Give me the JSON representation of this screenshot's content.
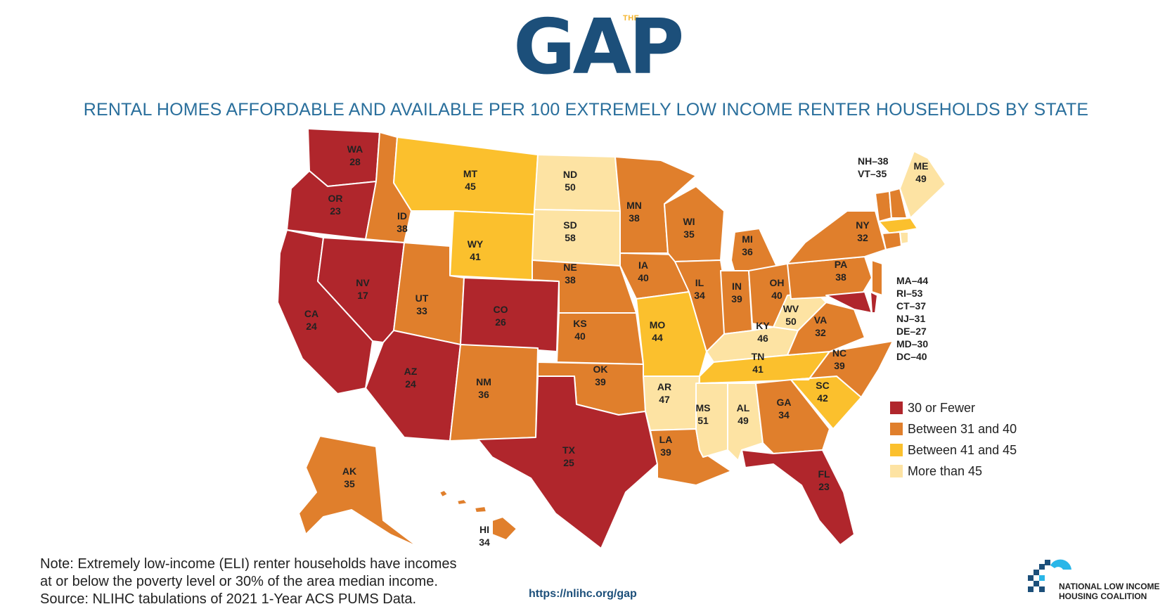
{
  "header": {
    "logo_small": "THE",
    "logo": "GAP",
    "title": "RENTAL HOMES AFFORDABLE AND AVAILABLE PER 100 EXTREMELY LOW INCOME RENTER HOUSEHOLDS BY STATE"
  },
  "colors": {
    "fewer_30": "#b0262c",
    "between_31_40": "#e07f2c",
    "between_41_45": "#fbc02d",
    "more_45": "#fde3a3",
    "border": "#ffffff"
  },
  "states": [
    {
      "code": "WA",
      "value": "28",
      "cat": "fewer_30"
    },
    {
      "code": "OR",
      "value": "23",
      "cat": "fewer_30"
    },
    {
      "code": "CA",
      "value": "24",
      "cat": "fewer_30"
    },
    {
      "code": "ID",
      "value": "38",
      "cat": "between_31_40"
    },
    {
      "code": "NV",
      "value": "17",
      "cat": "fewer_30"
    },
    {
      "code": "MT",
      "value": "45",
      "cat": "between_41_45"
    },
    {
      "code": "WY",
      "value": "41",
      "cat": "between_41_45"
    },
    {
      "code": "UT",
      "value": "33",
      "cat": "between_31_40"
    },
    {
      "code": "AZ",
      "value": "24",
      "cat": "fewer_30"
    },
    {
      "code": "CO",
      "value": "26",
      "cat": "fewer_30"
    },
    {
      "code": "NM",
      "value": "36",
      "cat": "between_31_40"
    },
    {
      "code": "ND",
      "value": "50",
      "cat": "more_45"
    },
    {
      "code": "SD",
      "value": "58",
      "cat": "more_45"
    },
    {
      "code": "NE",
      "value": "38",
      "cat": "between_31_40"
    },
    {
      "code": "KS",
      "value": "40",
      "cat": "between_31_40"
    },
    {
      "code": "OK",
      "value": "39",
      "cat": "between_31_40"
    },
    {
      "code": "TX",
      "value": "25",
      "cat": "fewer_30"
    },
    {
      "code": "MN",
      "value": "38",
      "cat": "between_31_40"
    },
    {
      "code": "IA",
      "value": "40",
      "cat": "between_31_40"
    },
    {
      "code": "MO",
      "value": "44",
      "cat": "between_41_45"
    },
    {
      "code": "AR",
      "value": "47",
      "cat": "more_45"
    },
    {
      "code": "LA",
      "value": "39",
      "cat": "between_31_40"
    },
    {
      "code": "WI",
      "value": "35",
      "cat": "between_31_40"
    },
    {
      "code": "IL",
      "value": "34",
      "cat": "between_31_40"
    },
    {
      "code": "MI",
      "value": "36",
      "cat": "between_31_40"
    },
    {
      "code": "IN",
      "value": "39",
      "cat": "between_31_40"
    },
    {
      "code": "OH",
      "value": "40",
      "cat": "between_31_40"
    },
    {
      "code": "KY",
      "value": "46",
      "cat": "more_45"
    },
    {
      "code": "TN",
      "value": "41",
      "cat": "between_41_45"
    },
    {
      "code": "MS",
      "value": "51",
      "cat": "more_45"
    },
    {
      "code": "AL",
      "value": "49",
      "cat": "more_45"
    },
    {
      "code": "GA",
      "value": "34",
      "cat": "between_31_40"
    },
    {
      "code": "FL",
      "value": "23",
      "cat": "fewer_30"
    },
    {
      "code": "SC",
      "value": "42",
      "cat": "between_41_45"
    },
    {
      "code": "NC",
      "value": "39",
      "cat": "between_31_40"
    },
    {
      "code": "VA",
      "value": "32",
      "cat": "between_31_40"
    },
    {
      "code": "WV",
      "value": "50",
      "cat": "more_45"
    },
    {
      "code": "PA",
      "value": "38",
      "cat": "between_31_40"
    },
    {
      "code": "NY",
      "value": "32",
      "cat": "between_31_40"
    },
    {
      "code": "ME",
      "value": "49",
      "cat": "more_45"
    },
    {
      "code": "AK",
      "value": "35",
      "cat": "between_31_40"
    },
    {
      "code": "HI",
      "value": "34",
      "cat": "between_31_40"
    },
    {
      "code": "NH",
      "value": "38",
      "cat": "between_31_40"
    },
    {
      "code": "VT",
      "value": "35",
      "cat": "between_31_40"
    },
    {
      "code": "MA",
      "value": "44",
      "cat": "between_41_45"
    },
    {
      "code": "RI",
      "value": "53",
      "cat": "more_45"
    },
    {
      "code": "CT",
      "value": "37",
      "cat": "between_31_40"
    },
    {
      "code": "NJ",
      "value": "31",
      "cat": "between_31_40"
    },
    {
      "code": "DE",
      "value": "27",
      "cat": "fewer_30"
    },
    {
      "code": "MD",
      "value": "30",
      "cat": "fewer_30"
    },
    {
      "code": "DC",
      "value": "40",
      "cat": "between_31_40"
    }
  ],
  "small_states_ne": [
    "NH–38",
    "VT–35"
  ],
  "small_states_ma": [
    "MA–44",
    "RI–53",
    "CT–37",
    "NJ–31",
    "DE–27",
    "MD–30",
    "DC–40"
  ],
  "legend": [
    {
      "label": "30 or Fewer",
      "cat": "fewer_30"
    },
    {
      "label": "Between 31 and 40",
      "cat": "between_31_40"
    },
    {
      "label": "Between 41 and 45",
      "cat": "between_41_45"
    },
    {
      "label": "More than 45",
      "cat": "more_45"
    }
  ],
  "note": [
    "Note: Extremely low-income (ELI) renter households have incomes",
    "at or below the poverty level or 30% of the area median income.",
    "Source: NLIHC tabulations of 2021 1-Year ACS PUMS Data."
  ],
  "url": "https://nlihc.org/gap",
  "org": [
    "NATIONAL LOW INCOME",
    "HOUSING COALITION"
  ]
}
